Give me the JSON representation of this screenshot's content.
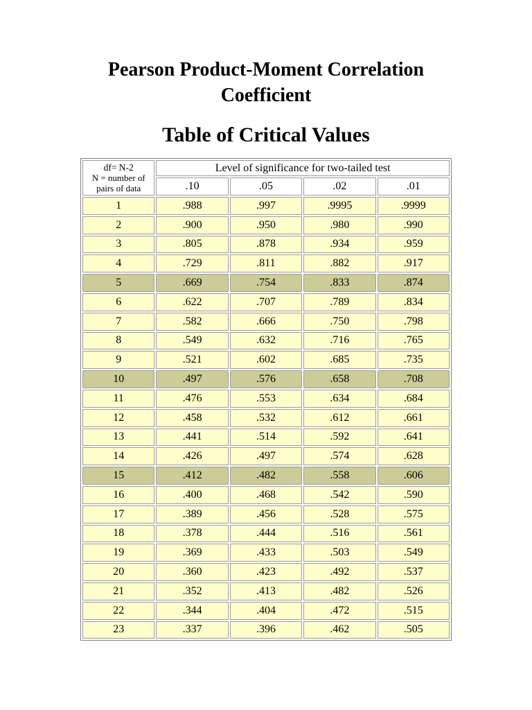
{
  "titles": {
    "line1": "Pearson Product-Moment Correlation",
    "line2": "Coefficient",
    "subtitle": "Table of Critical Values"
  },
  "table": {
    "corner": {
      "line1": "df= N-2",
      "line2": "N = number of",
      "line3": "pairs of data"
    },
    "span_header": "Level of significance for two-tailed test",
    "columns": [
      ".10",
      ".05",
      ".02",
      ".01"
    ],
    "rows": [
      {
        "df": "1",
        "values": [
          ".988",
          ".997",
          ".9995",
          ".9999"
        ],
        "highlight": false
      },
      {
        "df": "2",
        "values": [
          ".900",
          ".950",
          ".980",
          ".990"
        ],
        "highlight": false
      },
      {
        "df": "3",
        "values": [
          ".805",
          ".878",
          ".934",
          ".959"
        ],
        "highlight": false
      },
      {
        "df": "4",
        "values": [
          ".729",
          ".811",
          ".882",
          ".917"
        ],
        "highlight": false
      },
      {
        "df": "5",
        "values": [
          ".669",
          ".754",
          ".833",
          ".874"
        ],
        "highlight": true
      },
      {
        "df": "6",
        "values": [
          ".622",
          ".707",
          ".789",
          ".834"
        ],
        "highlight": false
      },
      {
        "df": "7",
        "values": [
          ".582",
          ".666",
          ".750",
          ".798"
        ],
        "highlight": false
      },
      {
        "df": "8",
        "values": [
          ".549",
          ".632",
          ".716",
          ".765"
        ],
        "highlight": false
      },
      {
        "df": "9",
        "values": [
          ".521",
          ".602",
          ".685",
          ".735"
        ],
        "highlight": false
      },
      {
        "df": "10",
        "values": [
          ".497",
          ".576",
          ".658",
          ".708"
        ],
        "highlight": true
      },
      {
        "df": "11",
        "values": [
          ".476",
          ".553",
          ".634",
          ".684"
        ],
        "highlight": false
      },
      {
        "df": "12",
        "values": [
          ".458",
          ".532",
          ".612",
          ".661"
        ],
        "highlight": false
      },
      {
        "df": "13",
        "values": [
          ".441",
          ".514",
          ".592",
          ".641"
        ],
        "highlight": false
      },
      {
        "df": "14",
        "values": [
          ".426",
          ".497",
          ".574",
          ".628"
        ],
        "highlight": false
      },
      {
        "df": "15",
        "values": [
          ".412",
          ".482",
          ".558",
          ".606"
        ],
        "highlight": true
      },
      {
        "df": "16",
        "values": [
          ".400",
          ".468",
          ".542",
          ".590"
        ],
        "highlight": false
      },
      {
        "df": "17",
        "values": [
          ".389",
          ".456",
          ".528",
          ".575"
        ],
        "highlight": false
      },
      {
        "df": "18",
        "values": [
          ".378",
          ".444",
          ".516",
          ".561"
        ],
        "highlight": false
      },
      {
        "df": "19",
        "values": [
          ".369",
          ".433",
          ".503",
          ".549"
        ],
        "highlight": false
      },
      {
        "df": "20",
        "values": [
          ".360",
          ".423",
          ".492",
          ".537"
        ],
        "highlight": false
      },
      {
        "df": "21",
        "values": [
          ".352",
          ".413",
          ".482",
          ".526"
        ],
        "highlight": false
      },
      {
        "df": "22",
        "values": [
          ".344",
          ".404",
          ".472",
          ".515"
        ],
        "highlight": false
      },
      {
        "df": "23",
        "values": [
          ".337",
          ".396",
          ".462",
          ".505"
        ],
        "highlight": false
      }
    ]
  },
  "colors": {
    "row_background": "#ffffcc",
    "highlight_background": "#cccc99",
    "header_background": "#ffffff",
    "border": "#9a9a9a",
    "page_background": "#ffffff",
    "text": "#000000"
  }
}
